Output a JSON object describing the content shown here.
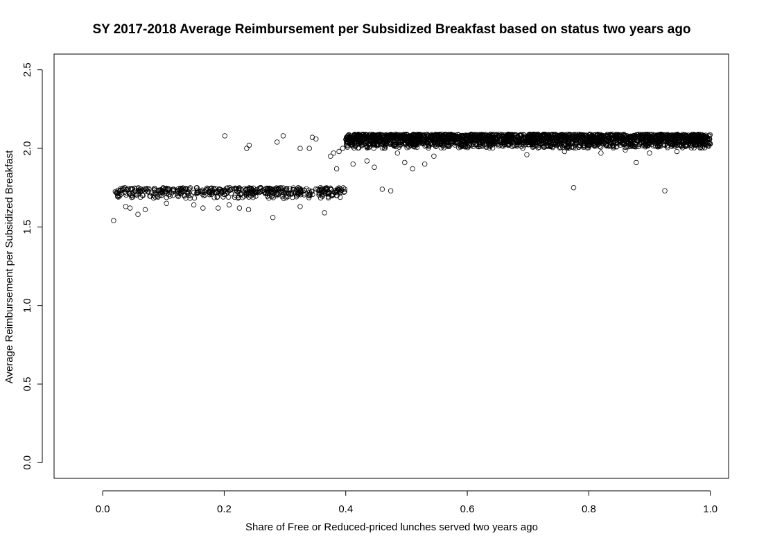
{
  "chart_data": {
    "type": "scatter",
    "title": "SY 2017-2018 Average Reimbursement per Subsidized Breakfast based on status two years ago",
    "xlabel": "Share of Free or Reduced-priced lunches served two years ago",
    "ylabel": "Average Reimbursement per Subsidized Breakfast",
    "xlim": [
      -0.08,
      1.03
    ],
    "ylim": [
      -0.1,
      2.6
    ],
    "x_ticks": [
      0.0,
      0.2,
      0.4,
      0.6,
      0.8,
      1.0
    ],
    "x_tick_labels": [
      "0.0",
      "0.2",
      "0.4",
      "0.6",
      "0.8",
      "1.0"
    ],
    "y_ticks": [
      0.0,
      0.5,
      1.0,
      1.5,
      2.0,
      2.5
    ],
    "y_tick_labels": [
      "0.0",
      "0.5",
      "1.0",
      "1.5",
      "2.0",
      "2.5"
    ],
    "grid": false,
    "marker": "open-circle",
    "bands": [
      {
        "x_range": [
          0.02,
          0.4
        ],
        "y_range": [
          1.68,
          1.75
        ],
        "count": 480
      },
      {
        "x_range": [
          0.4,
          1.0
        ],
        "y_range": [
          2.0,
          2.09
        ],
        "count": 2400
      }
    ],
    "points": [
      [
        0.018,
        1.54
      ],
      [
        0.058,
        1.58
      ],
      [
        0.07,
        1.61
      ],
      [
        0.045,
        1.62
      ],
      [
        0.038,
        1.63
      ],
      [
        0.105,
        1.65
      ],
      [
        0.15,
        1.64
      ],
      [
        0.165,
        1.62
      ],
      [
        0.19,
        1.62
      ],
      [
        0.208,
        1.64
      ],
      [
        0.225,
        1.62
      ],
      [
        0.24,
        1.61
      ],
      [
        0.28,
        1.56
      ],
      [
        0.325,
        1.63
      ],
      [
        0.365,
        1.59
      ],
      [
        0.201,
        2.08
      ],
      [
        0.237,
        2.0
      ],
      [
        0.241,
        2.02
      ],
      [
        0.287,
        2.04
      ],
      [
        0.297,
        2.08
      ],
      [
        0.325,
        2.0
      ],
      [
        0.34,
        2.0
      ],
      [
        0.345,
        2.07
      ],
      [
        0.351,
        2.06
      ],
      [
        0.375,
        1.95
      ],
      [
        0.38,
        1.97
      ],
      [
        0.385,
        1.87
      ],
      [
        0.389,
        1.98
      ],
      [
        0.395,
        2.0
      ],
      [
        0.412,
        1.9
      ],
      [
        0.435,
        1.92
      ],
      [
        0.447,
        1.88
      ],
      [
        0.46,
        1.74
      ],
      [
        0.474,
        1.73
      ],
      [
        0.485,
        1.97
      ],
      [
        0.497,
        1.91
      ],
      [
        0.51,
        1.87
      ],
      [
        0.53,
        1.9
      ],
      [
        0.545,
        1.95
      ],
      [
        0.698,
        1.96
      ],
      [
        0.775,
        1.75
      ],
      [
        0.878,
        1.91
      ],
      [
        0.9,
        1.97
      ],
      [
        0.925,
        1.73
      ],
      [
        0.945,
        1.98
      ],
      [
        0.82,
        1.97
      ],
      [
        0.86,
        1.99
      ],
      [
        0.76,
        1.98
      ]
    ]
  }
}
